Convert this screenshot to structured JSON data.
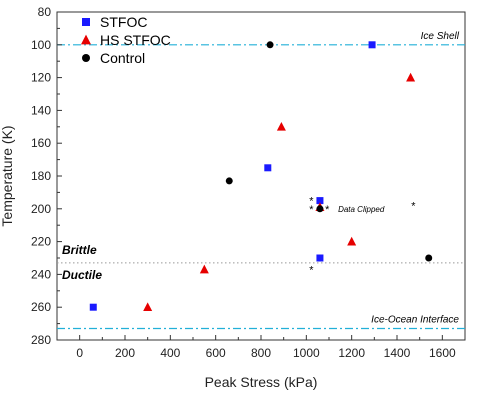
{
  "chart_data": {
    "type": "scatter",
    "xlabel": "Peak Stress (kPa)",
    "ylabel": "Temperature (K)",
    "xlim": [
      -100,
      1700
    ],
    "ylim": [
      80,
      280
    ],
    "y_inverted": true,
    "x_ticks": [
      0,
      200,
      400,
      600,
      800,
      1000,
      1200,
      1400,
      1600
    ],
    "y_ticks": [
      80,
      100,
      120,
      140,
      160,
      180,
      200,
      220,
      240,
      260,
      280
    ],
    "legend_position": "top-left",
    "series": [
      {
        "name": "STFOC",
        "marker": "square",
        "color": "#1a1aff",
        "points": [
          [
            60,
            260
          ],
          [
            830,
            175
          ],
          [
            1060,
            195
          ],
          [
            1060,
            230
          ],
          [
            1290,
            100
          ]
        ]
      },
      {
        "name": "HS STFOC",
        "marker": "triangle",
        "color": "#e60000",
        "points": [
          [
            300,
            260
          ],
          [
            550,
            237
          ],
          [
            890,
            150
          ],
          [
            1060,
            199
          ],
          [
            1200,
            220
          ],
          [
            1460,
            120
          ]
        ]
      },
      {
        "name": "Control",
        "marker": "circle",
        "color": "#000000",
        "points": [
          [
            660,
            183
          ],
          [
            840,
            100
          ],
          [
            1060,
            200
          ],
          [
            1540,
            230
          ]
        ]
      }
    ],
    "reference_lines": [
      {
        "label": "Ice Shell",
        "y": 100,
        "color": "#22b0d8"
      },
      {
        "label": "Ice-Ocean Interface",
        "y": 273,
        "color": "#22b0d8"
      }
    ],
    "boundary": {
      "y": 233,
      "upper_label": "Brittle",
      "lower_label": "Ductile"
    },
    "annotations": {
      "clipped_label": "Data Clipped",
      "asterisk": "*",
      "asterisk_points": [
        [
          1020,
          195
        ],
        [
          1020,
          200
        ],
        [
          1090,
          200
        ],
        [
          1020,
          237
        ],
        [
          1470,
          198
        ]
      ]
    }
  }
}
